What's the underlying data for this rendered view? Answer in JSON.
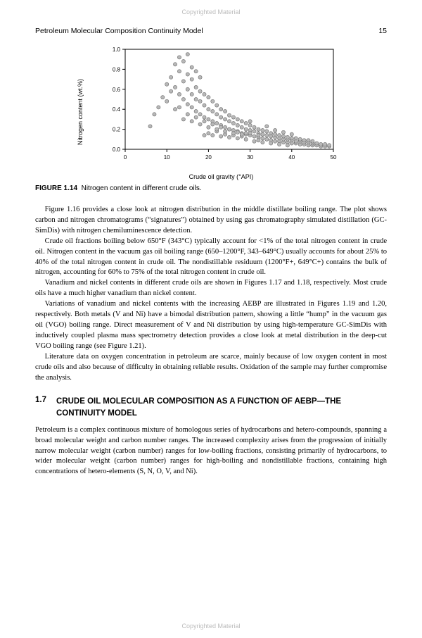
{
  "copyright": "Copyrighted Material",
  "header": {
    "title": "Petroleum Molecular Composition Continuity Model",
    "page": "15"
  },
  "chart": {
    "type": "scatter",
    "xlabel": "Crude oil gravity (°API)",
    "ylabel": "Nitrogen content (wt.%)",
    "xlim": [
      0,
      50
    ],
    "xtick_step": 10,
    "ylim": [
      0.0,
      1.0
    ],
    "ytick_step": 0.2,
    "marker_fill": "#b8b8b8",
    "marker_stroke": "#6b6b6b",
    "marker_radius": 2.6,
    "axis_color": "#000000",
    "tick_color": "#000000",
    "label_fontsize": 9,
    "tick_fontsize": 8,
    "background_color": "#ffffff",
    "points": [
      [
        6,
        0.23
      ],
      [
        7,
        0.35
      ],
      [
        8,
        0.42
      ],
      [
        9,
        0.52
      ],
      [
        10,
        0.48
      ],
      [
        10,
        0.65
      ],
      [
        11,
        0.58
      ],
      [
        11,
        0.72
      ],
      [
        12,
        0.62
      ],
      [
        12,
        0.85
      ],
      [
        13,
        0.55
      ],
      [
        13,
        0.78
      ],
      [
        13,
        0.92
      ],
      [
        14,
        0.5
      ],
      [
        14,
        0.68
      ],
      [
        14,
        0.88
      ],
      [
        15,
        0.45
      ],
      [
        15,
        0.6
      ],
      [
        15,
        0.75
      ],
      [
        15,
        0.95
      ],
      [
        16,
        0.42
      ],
      [
        16,
        0.55
      ],
      [
        16,
        0.7
      ],
      [
        16,
        0.82
      ],
      [
        17,
        0.38
      ],
      [
        17,
        0.5
      ],
      [
        17,
        0.62
      ],
      [
        17,
        0.78
      ],
      [
        18,
        0.35
      ],
      [
        18,
        0.48
      ],
      [
        18,
        0.58
      ],
      [
        18,
        0.72
      ],
      [
        19,
        0.32
      ],
      [
        19,
        0.44
      ],
      [
        19,
        0.55
      ],
      [
        19,
        0.14
      ],
      [
        20,
        0.3
      ],
      [
        20,
        0.4
      ],
      [
        20,
        0.52
      ],
      [
        20,
        0.16
      ],
      [
        21,
        0.28
      ],
      [
        21,
        0.38
      ],
      [
        21,
        0.48
      ],
      [
        21,
        0.14
      ],
      [
        22,
        0.26
      ],
      [
        22,
        0.35
      ],
      [
        22,
        0.44
      ],
      [
        22,
        0.18
      ],
      [
        23,
        0.24
      ],
      [
        23,
        0.32
      ],
      [
        23,
        0.4
      ],
      [
        23,
        0.13
      ],
      [
        24,
        0.22
      ],
      [
        24,
        0.3
      ],
      [
        24,
        0.38
      ],
      [
        24,
        0.15
      ],
      [
        25,
        0.2
      ],
      [
        25,
        0.28
      ],
      [
        25,
        0.34
      ],
      [
        25,
        0.12
      ],
      [
        26,
        0.19
      ],
      [
        26,
        0.26
      ],
      [
        26,
        0.32
      ],
      [
        26,
        0.14
      ],
      [
        27,
        0.18
      ],
      [
        27,
        0.24
      ],
      [
        27,
        0.3
      ],
      [
        27,
        0.11
      ],
      [
        28,
        0.16
      ],
      [
        28,
        0.22
      ],
      [
        28,
        0.28
      ],
      [
        28,
        0.13
      ],
      [
        29,
        0.15
      ],
      [
        29,
        0.2
      ],
      [
        29,
        0.26
      ],
      [
        29,
        0.1
      ],
      [
        30,
        0.14
      ],
      [
        30,
        0.19
      ],
      [
        30,
        0.24
      ],
      [
        30,
        0.28
      ],
      [
        31,
        0.13
      ],
      [
        31,
        0.18
      ],
      [
        31,
        0.22
      ],
      [
        31,
        0.08
      ],
      [
        32,
        0.12
      ],
      [
        32,
        0.16
      ],
      [
        32,
        0.2
      ],
      [
        32,
        0.09
      ],
      [
        33,
        0.11
      ],
      [
        33,
        0.15
      ],
      [
        33,
        0.19
      ],
      [
        33,
        0.07
      ],
      [
        34,
        0.1
      ],
      [
        34,
        0.14
      ],
      [
        34,
        0.18
      ],
      [
        34,
        0.23
      ],
      [
        35,
        0.09
      ],
      [
        35,
        0.13
      ],
      [
        35,
        0.16
      ],
      [
        35,
        0.06
      ],
      [
        36,
        0.08
      ],
      [
        36,
        0.12
      ],
      [
        36,
        0.15
      ],
      [
        36,
        0.19
      ],
      [
        37,
        0.08
      ],
      [
        37,
        0.11
      ],
      [
        37,
        0.14
      ],
      [
        37,
        0.05
      ],
      [
        38,
        0.07
      ],
      [
        38,
        0.1
      ],
      [
        38,
        0.13
      ],
      [
        38,
        0.17
      ],
      [
        39,
        0.07
      ],
      [
        39,
        0.1
      ],
      [
        39,
        0.12
      ],
      [
        39,
        0.04
      ],
      [
        40,
        0.06
      ],
      [
        40,
        0.09
      ],
      [
        40,
        0.11
      ],
      [
        40,
        0.15
      ],
      [
        41,
        0.06
      ],
      [
        41,
        0.08
      ],
      [
        41,
        0.11
      ],
      [
        42,
        0.05
      ],
      [
        42,
        0.08
      ],
      [
        42,
        0.1
      ],
      [
        43,
        0.05
      ],
      [
        43,
        0.07
      ],
      [
        43,
        0.09
      ],
      [
        44,
        0.04
      ],
      [
        44,
        0.07
      ],
      [
        44,
        0.09
      ],
      [
        45,
        0.04
      ],
      [
        45,
        0.06
      ],
      [
        45,
        0.08
      ],
      [
        46,
        0.04
      ],
      [
        46,
        0.06
      ],
      [
        47,
        0.03
      ],
      [
        47,
        0.05
      ],
      [
        48,
        0.03
      ],
      [
        48,
        0.05
      ],
      [
        49,
        0.03
      ],
      [
        49,
        0.04
      ],
      [
        14,
        0.3
      ],
      [
        16,
        0.28
      ],
      [
        18,
        0.25
      ],
      [
        20,
        0.22
      ],
      [
        22,
        0.2
      ],
      [
        24,
        0.18
      ],
      [
        26,
        0.16
      ],
      [
        28,
        0.15
      ],
      [
        30,
        0.16
      ],
      [
        32,
        0.14
      ],
      [
        12,
        0.4
      ],
      [
        13,
        0.42
      ],
      [
        15,
        0.35
      ],
      [
        17,
        0.32
      ],
      [
        19,
        0.28
      ],
      [
        21,
        0.25
      ],
      [
        23,
        0.22
      ],
      [
        25,
        0.2
      ],
      [
        27,
        0.17
      ],
      [
        29,
        0.16
      ]
    ]
  },
  "figure_caption": {
    "label": "FIGURE 1.14",
    "text": "Nitrogen content in different crude oils."
  },
  "paras": [
    "Figure 1.16 provides a close look at nitrogen distribution in the middle distillate boiling range. The plot shows carbon and nitrogen chromatograms (“signatures”) obtained by using gas chromatography simulated distillation (GC-SimDis) with nitrogen chemiluminescence detection.",
    "Crude oil fractions boiling below 650°F (343°C) typically account for <1% of the total nitrogen content in crude oil. Nitrogen content in the vacuum gas oil boiling range (650–1200°F, 343–649°C) usually accounts for about 25% to 40% of the total nitrogen content in crude oil. The nondistillable residuum (1200°F+, 649°C+) contains the bulk of nitrogen, accounting for 60% to 75% of the total nitrogen content in crude oil.",
    "Vanadium and nickel contents in different crude oils are shown in Figures 1.17 and 1.18, respectively. Most crude oils have a much higher vanadium than nickel content.",
    "Variations of vanadium and nickel contents with the increasing AEBP are illustrated in Figures 1.19 and 1.20, respectively. Both metals (V and Ni) have a bimodal distribution pattern, showing a little “hump” in the vacuum gas oil (VGO) boiling range. Direct measurement of V and Ni distribution by using high-temperature GC-SimDis with inductively coupled plasma mass spectrometry detection provides a close look at metal distribution in the deep-cut VGO boiling range (see Figure 1.21).",
    "Literature data on oxygen concentration in petroleum are scarce, mainly because of low oxygen content in most crude oils and also because of difficulty in obtaining reliable results. Oxidation of the sample may further compromise the analysis."
  ],
  "section": {
    "number": "1.7",
    "title": "CRUDE OIL MOLECULAR COMPOSITION AS A FUNCTION OF AEBP—THE CONTINUITY MODEL"
  },
  "section_para": "Petroleum is a complex continuous mixture of homologous series of hydrocarbons and hetero-compounds, spanning a broad molecular weight and carbon number ranges. The increased complexity arises from the progression of initially narrow molecular weight (carbon number) ranges for low-boiling fractions, consisting primarily of hydrocarbons, to wider molecular weight (carbon number) ranges for high-boiling and nondistillable fractions, containing high concentrations of hetero-elements (S, N, O, V, and Ni)."
}
